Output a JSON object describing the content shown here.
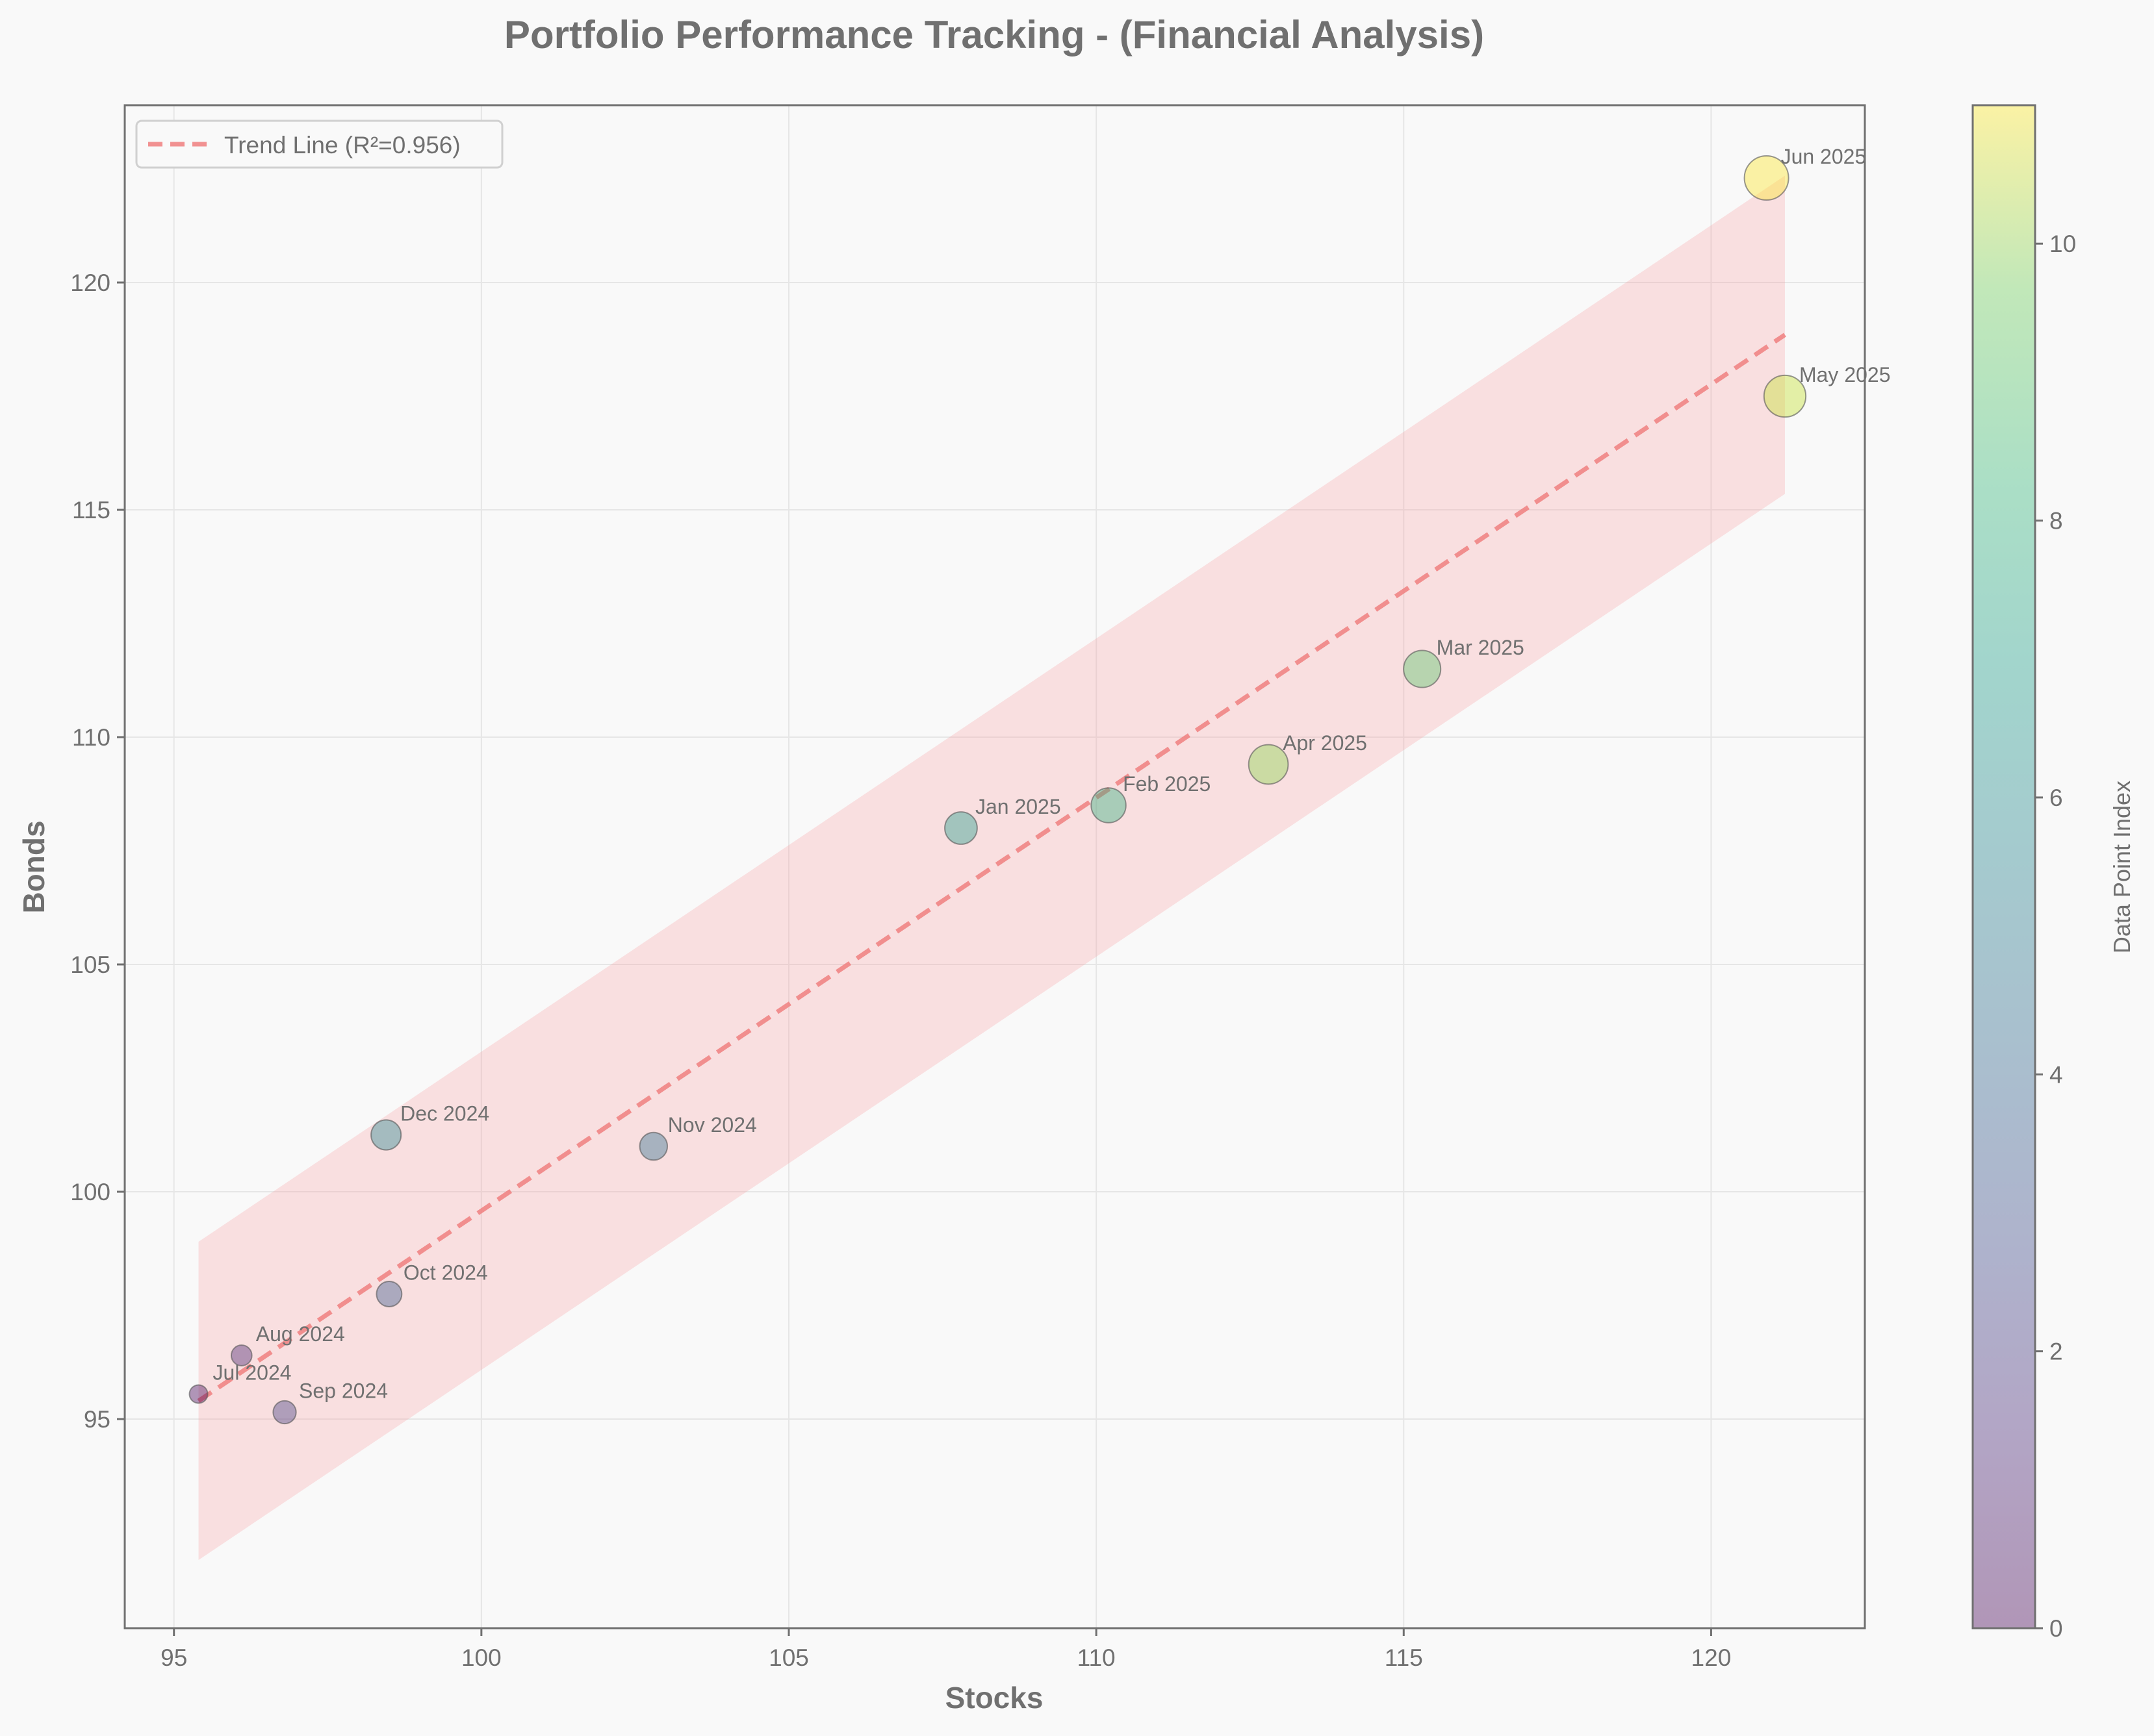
{
  "chart_data": {
    "type": "scatter",
    "title": "Portfolio Performance Tracking - (Financial Analysis)",
    "xlabel": "Stocks",
    "ylabel": "Bonds",
    "xlim": [
      94.2,
      122.5
    ],
    "ylim": [
      90.4,
      123.9
    ],
    "xticks": [
      95,
      100,
      105,
      110,
      115,
      120
    ],
    "yticks": [
      95,
      100,
      105,
      110,
      115,
      120
    ],
    "grid": true,
    "legend_position": "top-left",
    "points": [
      {
        "label": "Jul 2024",
        "x": 95.4,
        "y": 95.55,
        "index": 0
      },
      {
        "label": "Aug 2024",
        "x": 96.1,
        "y": 96.4,
        "index": 1
      },
      {
        "label": "Sep 2024",
        "x": 96.8,
        "y": 95.15,
        "index": 2
      },
      {
        "label": "Oct 2024",
        "x": 98.5,
        "y": 97.75,
        "index": 3
      },
      {
        "label": "Nov 2024",
        "x": 102.8,
        "y": 101.0,
        "index": 4
      },
      {
        "label": "Dec 2024",
        "x": 98.45,
        "y": 101.25,
        "index": 5
      },
      {
        "label": "Jan 2025",
        "x": 107.8,
        "y": 108.0,
        "index": 6
      },
      {
        "label": "Feb 2025",
        "x": 110.2,
        "y": 108.5,
        "index": 7
      },
      {
        "label": "Mar 2025",
        "x": 115.3,
        "y": 111.5,
        "index": 8
      },
      {
        "label": "Apr 2025",
        "x": 112.8,
        "y": 109.4,
        "index": 9
      },
      {
        "label": "May 2025",
        "x": 121.2,
        "y": 117.5,
        "index": 10
      },
      {
        "label": "Jun 2025",
        "x": 120.9,
        "y": 122.3,
        "index": 11
      }
    ],
    "trend_line": {
      "label": "Trend Line (R²=0.956)",
      "x_start": 95.4,
      "y_start": 95.4,
      "x_end": 121.2,
      "y_end": 118.85,
      "band_halfwidth": 3.5,
      "color": "#f08080"
    },
    "colorbar": {
      "label": "Data Point Index",
      "min": 0,
      "max": 11,
      "ticks": [
        0,
        2,
        4,
        6,
        8,
        10
      ],
      "colormap": "viridis"
    }
  }
}
